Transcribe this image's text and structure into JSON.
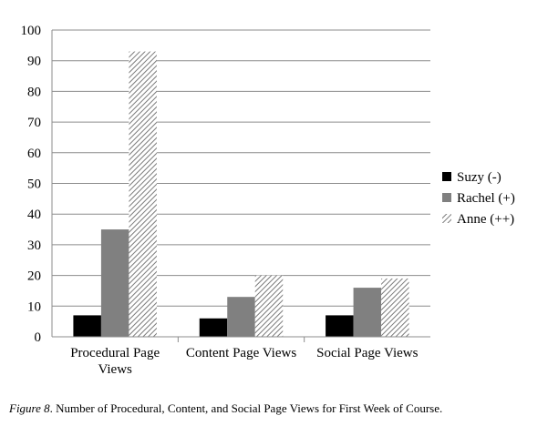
{
  "chart_data": {
    "type": "bar",
    "categories": [
      [
        "Procedural Page",
        "Views"
      ],
      [
        "Content Page Views"
      ],
      [
        "Social Page Views"
      ]
    ],
    "series": [
      {
        "name": "Suzy (-)",
        "values": [
          7,
          6,
          7
        ],
        "color": "#000000",
        "pattern": "solid"
      },
      {
        "name": "Rachel (+)",
        "values": [
          35,
          13,
          16
        ],
        "color": "#808080",
        "pattern": "solid"
      },
      {
        "name": "Anne (++)",
        "values": [
          93,
          20,
          19
        ],
        "color": "#bdbdbd",
        "pattern": "diagonal-hatch"
      }
    ],
    "ylim": [
      0,
      100
    ],
    "yticks": [
      0,
      10,
      20,
      30,
      40,
      50,
      60,
      70,
      80,
      90,
      100
    ],
    "grid": true,
    "legend": "right"
  },
  "caption": {
    "figure_label": "Figure 8",
    "text": ". Number of Procedural, Content, and Social Page Views for First Week of Course."
  }
}
